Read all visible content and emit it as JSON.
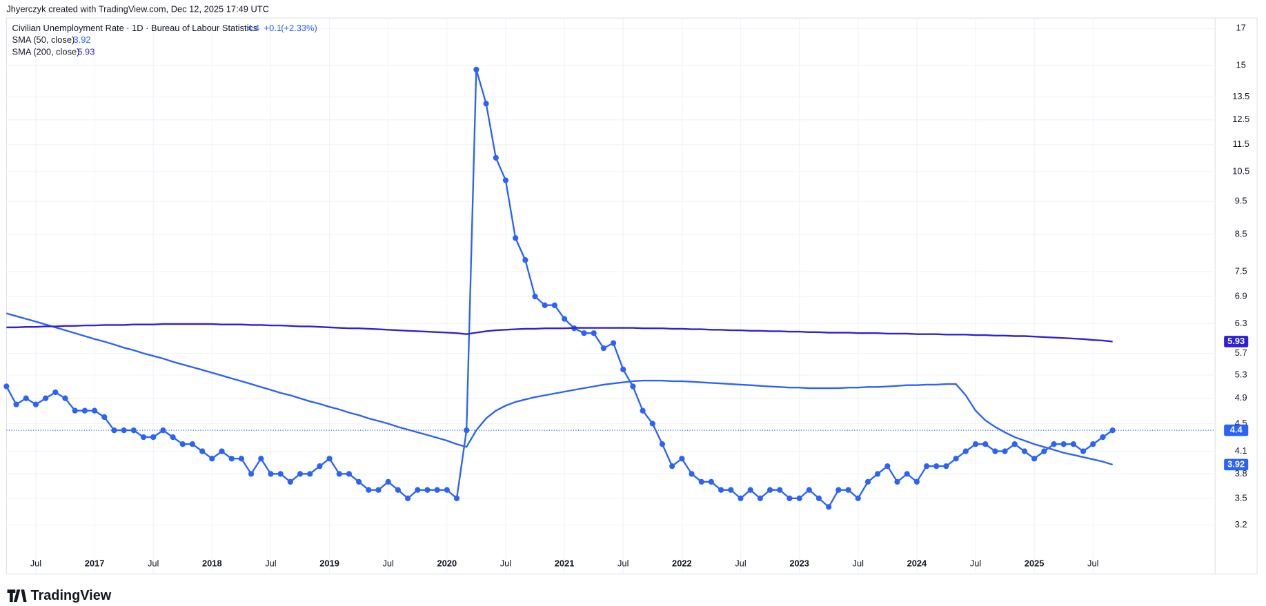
{
  "header": "Jhyerczyk created with TradingView.com, Dec 12, 2025 17:49 UTC",
  "footer_logo": "TradingView",
  "chart_data": {
    "type": "line",
    "title": "Civilian Unemployment Rate · 1D · Bureau of Labour Statistics",
    "change": "+0.1",
    "change_percent": "(+2.33%)",
    "log": true,
    "grid": true,
    "categories": [
      null,
      null,
      null,
      "Jul",
      null,
      null,
      null,
      null,
      null,
      "2017",
      null,
      null,
      null,
      null,
      null,
      "Jul",
      null,
      null,
      null,
      null,
      null,
      "2018",
      null,
      null,
      null,
      null,
      null,
      "Jul",
      null,
      null,
      null,
      null,
      null,
      "2019",
      null,
      null,
      null,
      null,
      null,
      "Jul",
      null,
      null,
      null,
      null,
      null,
      "2020",
      null,
      null,
      null,
      null,
      null,
      "Jul",
      null,
      null,
      null,
      null,
      null,
      "2021",
      null,
      null,
      null,
      null,
      null,
      "Jul",
      null,
      null,
      null,
      null,
      null,
      "2022",
      null,
      null,
      null,
      null,
      null,
      "Jul",
      null,
      null,
      null,
      null,
      null,
      "2023",
      null,
      null,
      null,
      null,
      null,
      "Jul",
      null,
      null,
      null,
      null,
      null,
      "2024",
      null,
      null,
      null,
      null,
      null,
      "Jul",
      null,
      null,
      null,
      null,
      null,
      "2025",
      null,
      null,
      null,
      null,
      null,
      "Jul",
      null,
      null
    ],
    "series": [
      {
        "color": "#2962ff",
        "markers": true,
        "values": [
          5.1,
          4.8,
          4.9,
          4.8,
          4.9,
          5.0,
          4.9,
          4.7,
          4.7,
          4.7,
          4.6,
          4.4,
          4.4,
          4.4,
          4.3,
          4.3,
          4.4,
          4.3,
          4.2,
          4.2,
          4.1,
          4.0,
          4.1,
          4.0,
          4.0,
          3.8,
          4.0,
          3.8,
          3.8,
          3.7,
          3.8,
          3.8,
          3.9,
          4.0,
          3.8,
          3.8,
          3.7,
          3.6,
          3.6,
          3.7,
          3.6,
          3.5,
          3.6,
          3.6,
          3.6,
          3.6,
          3.5,
          4.4,
          14.8,
          13.2,
          11.0,
          10.2,
          8.4,
          7.8,
          6.9,
          6.7,
          6.7,
          6.4,
          6.2,
          6.1,
          6.1,
          5.8,
          5.9,
          5.4,
          5.1,
          4.7,
          4.5,
          4.2,
          3.9,
          4.0,
          3.8,
          3.7,
          3.7,
          3.6,
          3.6,
          3.5,
          3.6,
          3.5,
          3.6,
          3.6,
          3.5,
          3.5,
          3.6,
          3.5,
          3.4,
          3.6,
          3.6,
          3.5,
          3.7,
          3.8,
          3.9,
          3.7,
          3.8,
          3.7,
          3.9,
          3.9,
          3.9,
          4.0,
          4.1,
          4.2,
          4.2,
          4.1,
          4.1,
          4.2,
          4.1,
          4.0,
          4.1,
          4.2,
          4.2,
          4.2,
          4.1,
          4.2,
          4.3,
          4.4
        ]
      },
      {
        "name": "SMA (50, close)",
        "color": "#2962ff",
        "values": [
          6.52,
          6.46,
          6.4,
          6.34,
          6.28,
          6.22,
          6.16,
          6.1,
          6.04,
          5.98,
          5.93,
          5.87,
          5.81,
          5.76,
          5.7,
          5.65,
          5.6,
          5.54,
          5.49,
          5.44,
          5.39,
          5.34,
          5.29,
          5.24,
          5.19,
          5.14,
          5.09,
          5.04,
          4.99,
          4.95,
          4.9,
          4.85,
          4.81,
          4.76,
          4.72,
          4.67,
          4.63,
          4.58,
          4.54,
          4.5,
          4.45,
          4.41,
          4.37,
          4.33,
          4.29,
          4.25,
          4.2,
          4.16,
          4.4,
          4.58,
          4.7,
          4.78,
          4.84,
          4.88,
          4.92,
          4.95,
          4.98,
          5.01,
          5.04,
          5.07,
          5.1,
          5.13,
          5.15,
          5.17,
          5.19,
          5.2,
          5.2,
          5.2,
          5.19,
          5.19,
          5.18,
          5.17,
          5.16,
          5.15,
          5.14,
          5.13,
          5.12,
          5.11,
          5.1,
          5.09,
          5.08,
          5.08,
          5.07,
          5.07,
          5.07,
          5.07,
          5.08,
          5.08,
          5.09,
          5.09,
          5.1,
          5.11,
          5.12,
          5.12,
          5.13,
          5.13,
          5.14,
          5.14,
          4.95,
          4.7,
          4.55,
          4.45,
          4.37,
          4.3,
          4.25,
          4.2,
          4.16,
          4.12,
          4.08,
          4.05,
          4.02,
          3.99,
          3.96,
          3.92
        ]
      },
      {
        "name": "SMA (200, close)",
        "color": "#2f1fdc",
        "values": [
          6.22,
          6.22,
          6.23,
          6.23,
          6.24,
          6.24,
          6.25,
          6.25,
          6.26,
          6.26,
          6.27,
          6.27,
          6.27,
          6.28,
          6.28,
          6.28,
          6.29,
          6.29,
          6.29,
          6.29,
          6.29,
          6.29,
          6.28,
          6.28,
          6.28,
          6.27,
          6.27,
          6.26,
          6.26,
          6.25,
          6.24,
          6.24,
          6.23,
          6.22,
          6.21,
          6.2,
          6.2,
          6.19,
          6.18,
          6.17,
          6.16,
          6.15,
          6.14,
          6.13,
          6.12,
          6.11,
          6.1,
          6.08,
          6.11,
          6.14,
          6.16,
          6.17,
          6.18,
          6.19,
          6.19,
          6.2,
          6.2,
          6.2,
          6.21,
          6.21,
          6.21,
          6.21,
          6.21,
          6.21,
          6.21,
          6.2,
          6.2,
          6.2,
          6.19,
          6.19,
          6.18,
          6.18,
          6.17,
          6.17,
          6.16,
          6.16,
          6.15,
          6.15,
          6.14,
          6.14,
          6.13,
          6.13,
          6.12,
          6.12,
          6.11,
          6.11,
          6.11,
          6.1,
          6.1,
          6.1,
          6.09,
          6.09,
          6.09,
          6.08,
          6.08,
          6.08,
          6.07,
          6.07,
          6.07,
          6.06,
          6.06,
          6.05,
          6.05,
          6.04,
          6.04,
          6.03,
          6.02,
          6.01,
          6.0,
          5.99,
          5.98,
          5.96,
          5.95,
          5.93
        ]
      }
    ],
    "ylim": [
      2.9,
      17.6
    ],
    "yticks": [
      3.2,
      3.5,
      3.8,
      4.1,
      4.5,
      4.9,
      5.3,
      5.7,
      6.3,
      6.9,
      7.5,
      8.5,
      9.5,
      10.5,
      11.5,
      12.5,
      13.5,
      15,
      17
    ]
  }
}
